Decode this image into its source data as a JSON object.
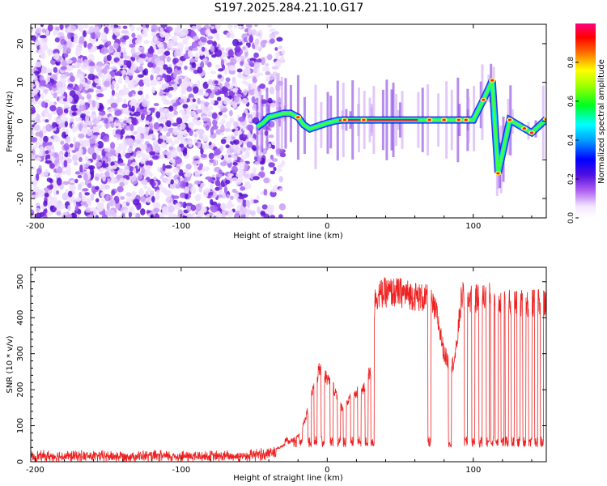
{
  "title": "S197.2025.284.21.10.G17",
  "chart_data": [
    {
      "type": "heatmap",
      "xlabel": "Height of straight line (km)",
      "ylabel": "Frequency (Hz)",
      "xlim": [
        -203,
        150
      ],
      "ylim": [
        -25,
        25
      ],
      "xticks": [
        -200,
        -100,
        0,
        100
      ],
      "yticks": [
        -20,
        -10,
        0,
        10,
        20
      ],
      "grid": false,
      "colorbar": {
        "label": "Normalized spectral amplitude",
        "ticks": [
          0.0,
          0.2,
          0.4,
          0.6,
          0.8
        ],
        "range": [
          0,
          1
        ],
        "colormap": "rainbow (white-violet-blue-cyan-green-yellow-red-magenta)"
      },
      "ridge": [
        [
          -48,
          -1.5
        ],
        [
          -44,
          -0.5
        ],
        [
          -40,
          1.0
        ],
        [
          -35,
          1.5
        ],
        [
          -30,
          2.0
        ],
        [
          -25,
          2.0
        ],
        [
          -20,
          1.0
        ],
        [
          -16,
          -1.0
        ],
        [
          -12,
          -2.0
        ],
        [
          -8,
          -1.5
        ],
        [
          -4,
          -1.0
        ],
        [
          0,
          -0.5
        ],
        [
          5,
          0.0
        ],
        [
          10,
          0.3
        ],
        [
          20,
          0.3
        ],
        [
          60,
          0.3
        ],
        [
          100,
          0.3
        ],
        [
          107,
          5.5
        ],
        [
          113,
          10.5
        ],
        [
          117,
          -13.5
        ],
        [
          125,
          0.3
        ],
        [
          140,
          -3.0
        ],
        [
          150,
          0.5
        ]
      ]
    },
    {
      "type": "line",
      "xlabel": "Height of straight line (km)",
      "ylabel": "SNR (10 * v/v)",
      "xlim": [
        -203,
        150
      ],
      "ylim": [
        0,
        540
      ],
      "xticks": [
        -200,
        -100,
        0,
        100
      ],
      "yticks": [
        0,
        100,
        200,
        300,
        400,
        500
      ],
      "grid": false,
      "series": [
        {
          "color": "#ee2222",
          "noise_floor": {
            "x_range": [
              -203,
              -35
            ],
            "mean": 15,
            "max": 35
          },
          "envelope": [
            [
              -203,
              15
            ],
            [
              -60,
              15
            ],
            [
              -40,
              25
            ],
            [
              -30,
              45
            ],
            [
              -20,
              70
            ],
            [
              -15,
              120
            ],
            [
              -10,
              200
            ],
            [
              -5,
              260
            ],
            [
              0,
              230
            ],
            [
              5,
              200
            ],
            [
              10,
              150
            ],
            [
              15,
              170
            ],
            [
              20,
              190
            ],
            [
              25,
              200
            ],
            [
              30,
              260
            ],
            [
              33,
              460
            ],
            [
              40,
              470
            ],
            [
              50,
              470
            ],
            [
              60,
              460
            ],
            [
              70,
              450
            ],
            [
              75,
              410
            ],
            [
              80,
              300
            ],
            [
              85,
              260
            ],
            [
              88,
              300
            ],
            [
              92,
              460
            ],
            [
              100,
              450
            ],
            [
              110,
              460
            ],
            [
              120,
              445
            ],
            [
              130,
              440
            ],
            [
              140,
              440
            ],
            [
              150,
              440
            ]
          ],
          "dropouts_to_floor": [
            -28,
            -22,
            -18,
            -12,
            -8,
            -3,
            3,
            8,
            12,
            17,
            22,
            27,
            31,
            70,
            84,
            95,
            100,
            105,
            110,
            113,
            116,
            120,
            123,
            127,
            131,
            135,
            139,
            143,
            147
          ],
          "floor_in_dropouts": 55
        }
      ]
    }
  ],
  "colors": {
    "line": "#ee2222",
    "axis": "#000000",
    "heat_low": "#a020f0"
  }
}
